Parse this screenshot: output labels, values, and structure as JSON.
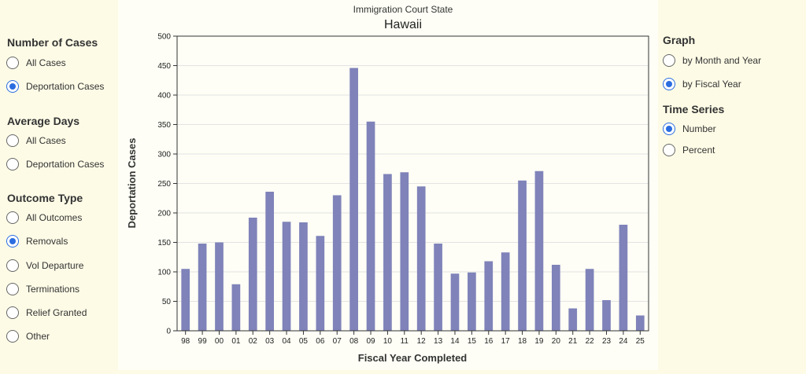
{
  "left_panel": {
    "number_of_cases": {
      "title": "Number of Cases",
      "options": [
        {
          "label": "All Cases",
          "selected": false
        },
        {
          "label": "Deportation Cases",
          "selected": true
        }
      ]
    },
    "average_days": {
      "title": "Average Days",
      "options": [
        {
          "label": "All Cases",
          "selected": false
        },
        {
          "label": "Deportation Cases",
          "selected": false
        }
      ]
    },
    "outcome_type": {
      "title": "Outcome Type",
      "options": [
        {
          "label": "All Outcomes",
          "selected": false
        },
        {
          "label": "Removals",
          "selected": true
        },
        {
          "label": "Vol Departure",
          "selected": false
        },
        {
          "label": "Terminations",
          "selected": false
        },
        {
          "label": "Relief Granted",
          "selected": false
        },
        {
          "label": "Other",
          "selected": false
        }
      ]
    }
  },
  "right_panel": {
    "graph": {
      "title": "Graph",
      "options": [
        {
          "label": "by Month and Year",
          "selected": false
        },
        {
          "label": "by Fiscal Year",
          "selected": true
        }
      ]
    },
    "time_series": {
      "title": "Time Series",
      "options": [
        {
          "label": "Number",
          "selected": true
        },
        {
          "label": "Percent",
          "selected": false
        }
      ]
    }
  },
  "colors": {
    "bar": "#7f83b9",
    "radio_selected": "#2b6de0",
    "background": "#fdfbe6"
  },
  "chart_data": {
    "type": "bar",
    "title": "Hawaii",
    "subtitle": "Immigration Court State",
    "xlabel": "Fiscal Year Completed",
    "ylabel": "Deportation Cases",
    "ylim": [
      0,
      500
    ],
    "yticks": [
      0,
      50,
      100,
      150,
      200,
      250,
      300,
      350,
      400,
      450,
      500
    ],
    "grid": true,
    "categories": [
      "98",
      "99",
      "00",
      "01",
      "02",
      "03",
      "04",
      "05",
      "06",
      "07",
      "08",
      "09",
      "10",
      "11",
      "12",
      "13",
      "14",
      "15",
      "16",
      "17",
      "18",
      "19",
      "20",
      "21",
      "22",
      "23",
      "24",
      "25"
    ],
    "values": [
      105,
      148,
      150,
      79,
      192,
      236,
      185,
      184,
      161,
      230,
      446,
      355,
      266,
      269,
      245,
      148,
      97,
      99,
      118,
      133,
      255,
      271,
      112,
      38,
      105,
      52,
      180,
      26
    ]
  }
}
